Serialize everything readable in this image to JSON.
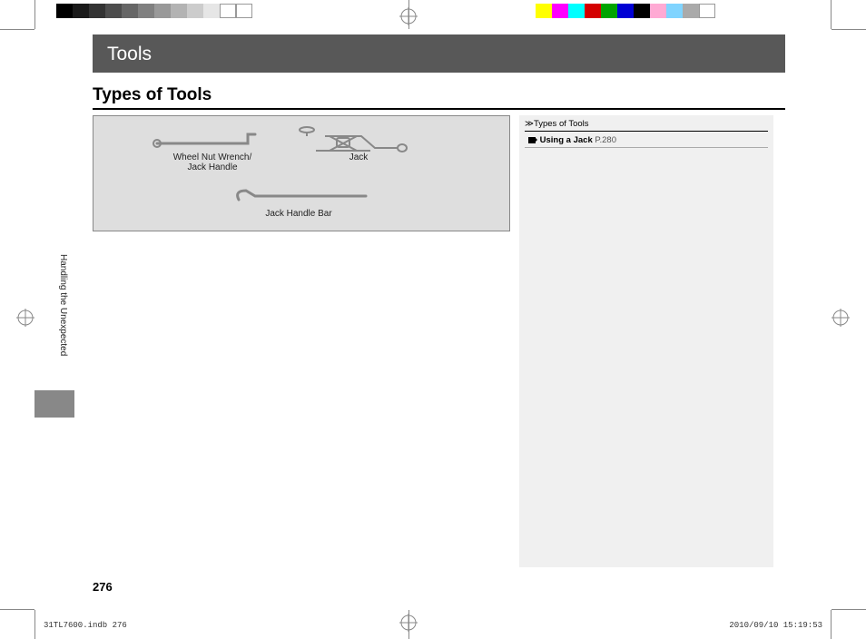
{
  "colorbar_left": [
    "#000000",
    "#1a1a1a",
    "#333333",
    "#4d4d4d",
    "#666666",
    "#808080",
    "#999999",
    "#b3b3b3",
    "#cccccc",
    "#e6e6e6",
    "#ffffff",
    "#ffffff"
  ],
  "colorbar_right": [
    "#ffff00",
    "#ff00ff",
    "#00ffff",
    "#d40000",
    "#00a400",
    "#0000d4",
    "#000000",
    "#ffaad4",
    "#80d4ff",
    "#aaaaaa",
    "#ffffff"
  ],
  "section_title": "Tools",
  "page_subtitle": "Types of Tools",
  "illustration": {
    "wrench_label": "Wheel Nut Wrench/\nJack Handle",
    "jack_label": "Jack",
    "bar_label": "Jack Handle Bar"
  },
  "sidebar": {
    "heading_icon": "≫",
    "heading": "Types of Tools",
    "link_bold": "Using a Jack",
    "link_page": "P.280"
  },
  "vertical_section": "Handling the Unexpected",
  "page_number": "276",
  "footer": {
    "filename": "31TL7600.indb   276",
    "timestamp": "2010/09/10   15:19:53"
  }
}
